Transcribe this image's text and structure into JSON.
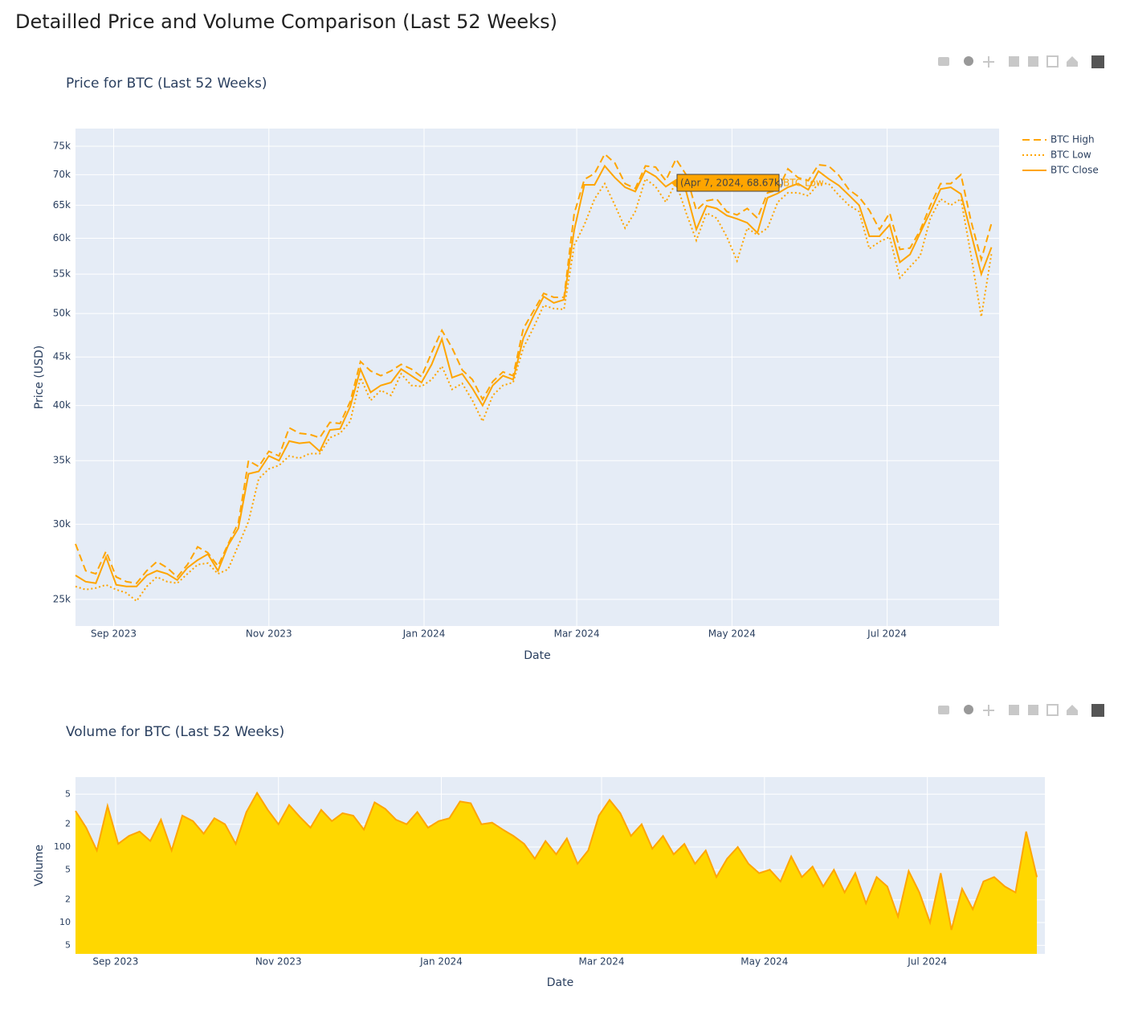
{
  "title": "Detailled Price and Volume Comparison (Last 52 Weeks)",
  "chart_data": [
    {
      "type": "line",
      "title": "Price for BTC (Last 52 Weeks)",
      "x_label": "Date",
      "y_label": "Price (USD)",
      "x": [
        "2023-08-17",
        "2023-08-21",
        "2023-08-25",
        "2023-08-29",
        "2023-09-02",
        "2023-09-06",
        "2023-09-10",
        "2023-09-14",
        "2023-09-18",
        "2023-09-22",
        "2023-09-26",
        "2023-09-30",
        "2023-10-04",
        "2023-10-08",
        "2023-10-12",
        "2023-10-16",
        "2023-10-20",
        "2023-10-24",
        "2023-10-28",
        "2023-11-01",
        "2023-11-05",
        "2023-11-09",
        "2023-11-13",
        "2023-11-17",
        "2023-11-21",
        "2023-11-25",
        "2023-11-29",
        "2023-12-03",
        "2023-12-07",
        "2023-12-11",
        "2023-12-15",
        "2023-12-19",
        "2023-12-23",
        "2023-12-27",
        "2023-12-31",
        "2024-01-04",
        "2024-01-08",
        "2024-01-12",
        "2024-01-16",
        "2024-01-20",
        "2024-01-24",
        "2024-01-28",
        "2024-02-01",
        "2024-02-05",
        "2024-02-09",
        "2024-02-13",
        "2024-02-17",
        "2024-02-21",
        "2024-02-25",
        "2024-02-29",
        "2024-03-04",
        "2024-03-08",
        "2024-03-12",
        "2024-03-16",
        "2024-03-20",
        "2024-03-24",
        "2024-03-28",
        "2024-04-01",
        "2024-04-05",
        "2024-04-09",
        "2024-04-13",
        "2024-04-17",
        "2024-04-21",
        "2024-04-25",
        "2024-04-29",
        "2024-05-03",
        "2024-05-07",
        "2024-05-11",
        "2024-05-15",
        "2024-05-19",
        "2024-05-23",
        "2024-05-27",
        "2024-05-31",
        "2024-06-04",
        "2024-06-08",
        "2024-06-12",
        "2024-06-16",
        "2024-06-20",
        "2024-06-24",
        "2024-06-28",
        "2024-07-02",
        "2024-07-06",
        "2024-07-10",
        "2024-07-14",
        "2024-07-18",
        "2024-07-22",
        "2024-07-26",
        "2024-07-30",
        "2024-08-03",
        "2024-08-07",
        "2024-08-11"
      ],
      "xlim": [
        "2023-08-17",
        "2024-08-14"
      ],
      "xticks": [
        {
          "value": "2023-09-01",
          "label": "Sep 2023"
        },
        {
          "value": "2023-11-01",
          "label": "Nov 2023"
        },
        {
          "value": "2024-01-01",
          "label": "Jan 2024"
        },
        {
          "value": "2024-03-01",
          "label": "Mar 2024"
        },
        {
          "value": "2024-05-01",
          "label": "May 2024"
        },
        {
          "value": "2024-07-01",
          "label": "Jul 2024"
        }
      ],
      "ylim": [
        23440,
        78280
      ],
      "yticks": [
        {
          "value": 25000,
          "label": "25k"
        },
        {
          "value": 30000,
          "label": "30k"
        },
        {
          "value": 35000,
          "label": "35k"
        },
        {
          "value": 40000,
          "label": "40k"
        },
        {
          "value": 45000,
          "label": "45k"
        },
        {
          "value": 50000,
          "label": "50k"
        },
        {
          "value": 55000,
          "label": "55k"
        },
        {
          "value": 60000,
          "label": "60k"
        },
        {
          "value": 65000,
          "label": "65k"
        },
        {
          "value": 70000,
          "label": "70k"
        },
        {
          "value": 75000,
          "label": "75k"
        }
      ],
      "log_y": true,
      "grid": true,
      "legend": "right",
      "series": [
        {
          "name": "BTC High",
          "color": "#ffa500",
          "dash": "dash",
          "values": [
            28600,
            26800,
            26600,
            28100,
            26400,
            26100,
            26000,
            26800,
            27400,
            27000,
            26400,
            27200,
            28400,
            28000,
            27100,
            28600,
            30100,
            35000,
            34500,
            35800,
            35400,
            37900,
            37400,
            37300,
            37000,
            38400,
            38300,
            40400,
            44500,
            43500,
            43000,
            43500,
            44200,
            43700,
            42900,
            45500,
            48000,
            46000,
            43600,
            42600,
            40600,
            42400,
            43400,
            43000,
            48200,
            50300,
            52500,
            52000,
            52000,
            63700,
            69200,
            70200,
            73600,
            72000,
            68500,
            67700,
            71500,
            71300,
            69000,
            72700,
            70000,
            64200,
            65700,
            66000,
            64000,
            63500,
            64500,
            63000,
            67000,
            67400,
            71000,
            69500,
            69000,
            71700,
            71500,
            69900,
            67500,
            66300,
            64200,
            61300,
            63800,
            58400,
            58600,
            61200,
            65000,
            68500,
            68500,
            70000,
            62500,
            57000,
            62200
          ]
        },
        {
          "name": "BTC Low",
          "color": "#ffa500",
          "dash": "dot",
          "values": [
            25800,
            25600,
            25700,
            25900,
            25600,
            25400,
            24900,
            25800,
            26400,
            26100,
            26000,
            26600,
            27200,
            27300,
            26600,
            26900,
            28500,
            30200,
            33500,
            34300,
            34600,
            35400,
            35200,
            35600,
            35600,
            37000,
            37400,
            38500,
            42800,
            40500,
            41500,
            41000,
            43200,
            42000,
            41900,
            42600,
            44000,
            41600,
            42200,
            40500,
            38500,
            41000,
            42000,
            42300,
            46000,
            48300,
            51000,
            50600,
            50500,
            59000,
            62000,
            66000,
            68500,
            65000,
            61500,
            64000,
            69300,
            68000,
            65500,
            68700,
            63800,
            59700,
            63800,
            63000,
            60200,
            56800,
            61500,
            60500,
            61500,
            65500,
            67000,
            67000,
            66500,
            68500,
            68500,
            66600,
            65000,
            64000,
            58500,
            59500,
            60200,
            54500,
            56000,
            57500,
            63000,
            66000,
            65000,
            66000,
            57500,
            49600,
            57800
          ]
        },
        {
          "name": "BTC Close",
          "color": "#ffa500",
          "dash": "solid",
          "values": [
            26500,
            26100,
            26000,
            27700,
            25900,
            25800,
            25800,
            26500,
            26800,
            26600,
            26200,
            27000,
            27500,
            27900,
            26800,
            28500,
            29700,
            33900,
            34100,
            35400,
            35000,
            36700,
            36500,
            36600,
            35800,
            37700,
            37800,
            39900,
            43700,
            41300,
            42000,
            42300,
            43700,
            43000,
            42300,
            44200,
            47000,
            42800,
            43200,
            41700,
            40000,
            42000,
            43000,
            42600,
            47100,
            49700,
            52100,
            51300,
            51700,
            61200,
            68300,
            68300,
            71500,
            69500,
            67900,
            67200,
            70700,
            69700,
            68000,
            69100,
            67200,
            61300,
            64900,
            64500,
            63400,
            62900,
            62300,
            60800,
            66200,
            66900,
            67900,
            68500,
            67500,
            70600,
            69300,
            68200,
            66600,
            65000,
            60300,
            60300,
            62000,
            56600,
            57700,
            60800,
            64000,
            67600,
            67900,
            66800,
            60700,
            55000,
            58700
          ]
        }
      ],
      "hover": {
        "text": "(Apr 7, 2024, 68.67k)",
        "series": "BTC Low"
      }
    },
    {
      "type": "area",
      "title": "Volume for BTC (Last 52 Weeks)",
      "x_label": "Date",
      "y_label": "Volume",
      "x": [
        "2023-08-17",
        "2023-08-21",
        "2023-08-25",
        "2023-08-29",
        "2023-09-02",
        "2023-09-06",
        "2023-09-10",
        "2023-09-14",
        "2023-09-18",
        "2023-09-22",
        "2023-09-26",
        "2023-09-30",
        "2023-10-04",
        "2023-10-08",
        "2023-10-12",
        "2023-10-16",
        "2023-10-20",
        "2023-10-24",
        "2023-10-28",
        "2023-11-01",
        "2023-11-05",
        "2023-11-09",
        "2023-11-13",
        "2023-11-17",
        "2023-11-21",
        "2023-11-25",
        "2023-11-29",
        "2023-12-03",
        "2023-12-07",
        "2023-12-11",
        "2023-12-15",
        "2023-12-19",
        "2023-12-23",
        "2023-12-27",
        "2023-12-31",
        "2024-01-04",
        "2024-01-08",
        "2024-01-12",
        "2024-01-16",
        "2024-01-20",
        "2024-01-24",
        "2024-01-28",
        "2024-02-01",
        "2024-02-05",
        "2024-02-09",
        "2024-02-13",
        "2024-02-17",
        "2024-02-21",
        "2024-02-25",
        "2024-02-29",
        "2024-03-04",
        "2024-03-08",
        "2024-03-12",
        "2024-03-16",
        "2024-03-20",
        "2024-03-24",
        "2024-03-28",
        "2024-04-01",
        "2024-04-05",
        "2024-04-09",
        "2024-04-13",
        "2024-04-17",
        "2024-04-21",
        "2024-04-25",
        "2024-04-29",
        "2024-05-03",
        "2024-05-07",
        "2024-05-11",
        "2024-05-15",
        "2024-05-19",
        "2024-05-23",
        "2024-05-27",
        "2024-05-31",
        "2024-06-04",
        "2024-06-08",
        "2024-06-12",
        "2024-06-16",
        "2024-06-20",
        "2024-06-24",
        "2024-06-28",
        "2024-07-02",
        "2024-07-06",
        "2024-07-10",
        "2024-07-14",
        "2024-07-18",
        "2024-07-22",
        "2024-07-26",
        "2024-07-30",
        "2024-08-03",
        "2024-08-07",
        "2024-08-11"
      ],
      "xlim": [
        "2023-08-17",
        "2024-08-14"
      ],
      "xticks": [
        {
          "value": "2023-09-01",
          "label": "Sep 2023"
        },
        {
          "value": "2023-11-01",
          "label": "Nov 2023"
        },
        {
          "value": "2024-01-01",
          "label": "Jan 2024"
        },
        {
          "value": "2024-03-01",
          "label": "Mar 2024"
        },
        {
          "value": "2024-05-01",
          "label": "May 2024"
        },
        {
          "value": "2024-07-01",
          "label": "Jul 2024"
        }
      ],
      "ylim": [
        3.85,
        842
      ],
      "yticks": [
        {
          "value": 5,
          "label": "5"
        },
        10,
        {
          "value": 20,
          "label": "2"
        },
        {
          "value": 50,
          "label": "5"
        },
        100,
        {
          "value": 200,
          "label": "2"
        },
        {
          "value": 500,
          "label": "5"
        }
      ],
      "log_y": true,
      "grid": true,
      "color": "#ffd700",
      "line_color": "#ffa500",
      "values": [
        300,
        180,
        90,
        350,
        110,
        140,
        160,
        120,
        230,
        90,
        260,
        220,
        150,
        240,
        200,
        110,
        290,
        520,
        310,
        200,
        360,
        250,
        180,
        310,
        220,
        280,
        260,
        170,
        390,
        320,
        230,
        200,
        290,
        180,
        220,
        240,
        400,
        380,
        200,
        210,
        170,
        140,
        110,
        70,
        120,
        80,
        130,
        60,
        90,
        260,
        420,
        280,
        140,
        200,
        95,
        140,
        80,
        110,
        60,
        90,
        40,
        70,
        100,
        60,
        45,
        50,
        35,
        75,
        40,
        55,
        30,
        50,
        25,
        45,
        18,
        40,
        30,
        12,
        48,
        25,
        10,
        45,
        8,
        28,
        15,
        35,
        40,
        30,
        25,
        160,
        40
      ]
    }
  ]
}
